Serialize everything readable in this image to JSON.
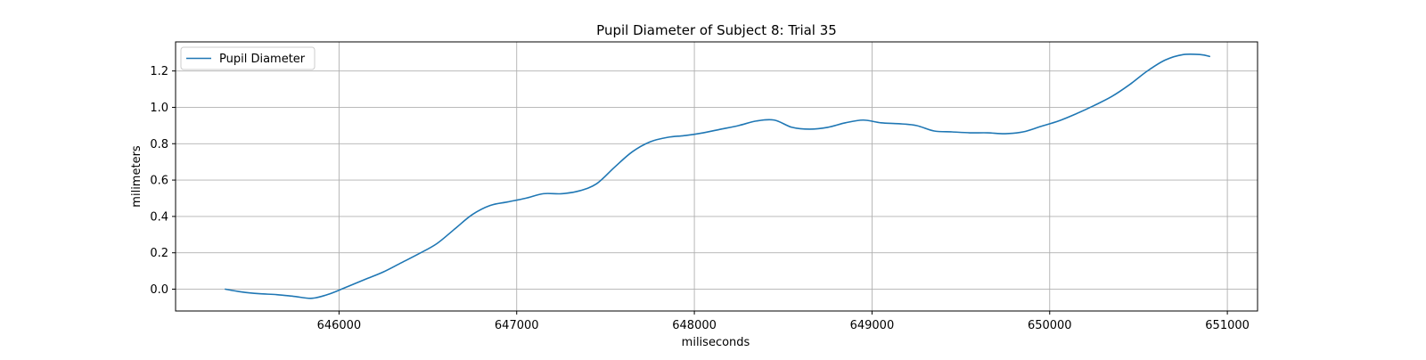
{
  "chart_data": {
    "type": "line",
    "title": "Pupil Diameter of Subject 8: Trial 35",
    "xlabel": "miliseconds",
    "ylabel": "milimeters",
    "xlim": [
      645080,
      651170
    ],
    "ylim": [
      -0.12,
      1.36
    ],
    "xticks": [
      646000,
      647000,
      648000,
      649000,
      650000,
      651000
    ],
    "yticks": [
      0.0,
      0.2,
      0.4,
      0.6,
      0.8,
      1.0,
      1.2
    ],
    "xtick_labels": [
      "646000",
      "647000",
      "648000",
      "649000",
      "650000",
      "651000"
    ],
    "ytick_labels": [
      "0.0",
      "0.2",
      "0.4",
      "0.6",
      "0.8",
      "1.0",
      "1.2"
    ],
    "grid": true,
    "legend_position": "top-left",
    "series": [
      {
        "name": "Pupil Diameter",
        "color": "#1f77b4",
        "x": [
          645360,
          645450,
          645550,
          645650,
          645750,
          645850,
          645950,
          646050,
          646150,
          646250,
          646350,
          646450,
          646550,
          646650,
          646750,
          646850,
          646950,
          647050,
          647150,
          647250,
          647350,
          647450,
          647550,
          647650,
          647750,
          647850,
          647950,
          648050,
          648150,
          648250,
          648350,
          648450,
          648550,
          648650,
          648750,
          648850,
          648950,
          649050,
          649150,
          649250,
          649350,
          649450,
          649550,
          649650,
          649750,
          649850,
          649950,
          650050,
          650150,
          650250,
          650350,
          650450,
          650550,
          650650,
          650750,
          650850,
          650900
        ],
        "y": [
          0.0,
          -0.015,
          -0.025,
          -0.03,
          -0.04,
          -0.05,
          -0.025,
          0.015,
          0.055,
          0.095,
          0.145,
          0.195,
          0.25,
          0.33,
          0.41,
          0.46,
          0.48,
          0.5,
          0.525,
          0.525,
          0.54,
          0.58,
          0.67,
          0.755,
          0.81,
          0.835,
          0.845,
          0.86,
          0.88,
          0.9,
          0.925,
          0.93,
          0.89,
          0.88,
          0.89,
          0.915,
          0.93,
          0.915,
          0.91,
          0.9,
          0.87,
          0.865,
          0.86,
          0.86,
          0.855,
          0.865,
          0.895,
          0.925,
          0.965,
          1.01,
          1.06,
          1.125,
          1.2,
          1.26,
          1.29,
          1.29,
          1.28
        ]
      }
    ]
  }
}
